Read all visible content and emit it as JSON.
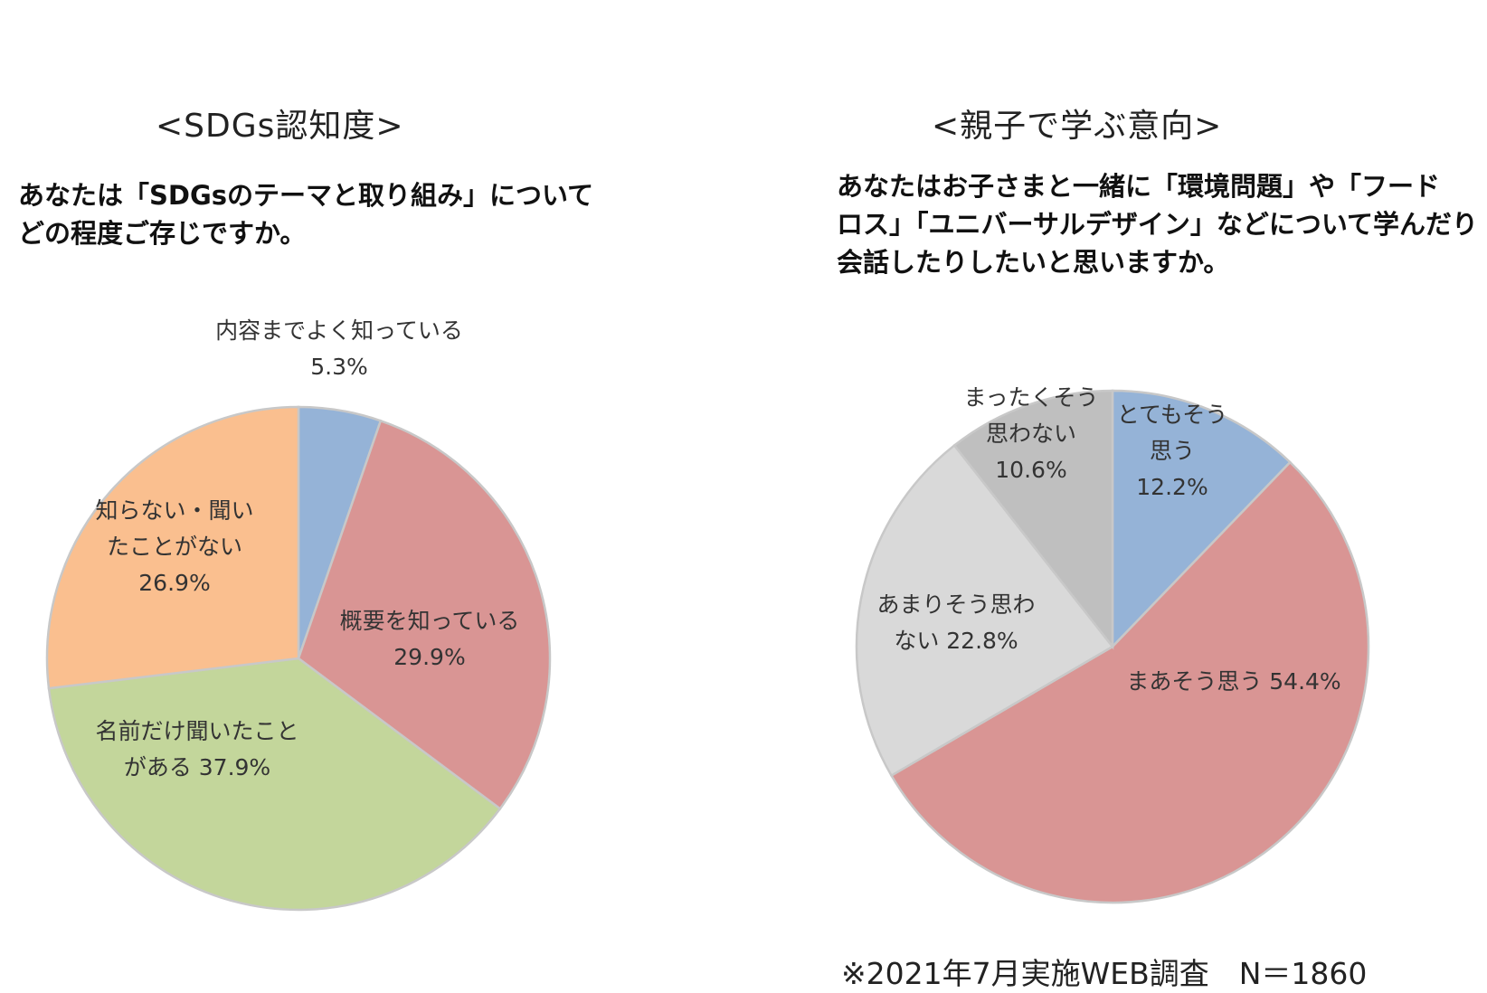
{
  "chart_data": [
    {
      "type": "pie",
      "title": "<SDGs認知度>",
      "subtitle_lines": [
        "あなたは「SDGsのテーマと取り組み」について",
        "どの程度ご存じですか。"
      ],
      "slices": [
        {
          "label_lines": [
            "内容までよく知っている",
            "5.3%"
          ],
          "value": 5.3,
          "color": "#95b3d7"
        },
        {
          "label_lines": [
            "概要を知っている",
            "29.9%"
          ],
          "value": 29.9,
          "color": "#d99594"
        },
        {
          "label_lines": [
            "名前だけ聞いたこと",
            "がある 37.9%"
          ],
          "value": 37.9,
          "color": "#c3d69b"
        },
        {
          "label_lines": [
            "知らない・聞い",
            "たことがない",
            "26.9%"
          ],
          "value": 26.9,
          "color": "#fabf8f"
        }
      ]
    },
    {
      "type": "pie",
      "title": "<親子で学ぶ意向>",
      "subtitle_lines": [
        "あなたはお子さまと一緒に「環境問題」や「フード",
        "ロス」「ユニバーサルデザイン」などについて学んだり",
        "会話したりしたいと思いますか。"
      ],
      "slices": [
        {
          "label_lines": [
            "とてもそう",
            "思う",
            "12.2%"
          ],
          "value": 12.2,
          "color": "#95b3d7"
        },
        {
          "label_lines": [
            "まあそう思う 54.4%"
          ],
          "value": 54.4,
          "color": "#d99594"
        },
        {
          "label_lines": [
            "あまりそう思わ",
            "ない 22.8%"
          ],
          "value": 22.8,
          "color": "#d9d9d9"
        },
        {
          "label_lines": [
            "まったくそう",
            "思わない",
            "10.6%"
          ],
          "value": 10.6,
          "color": "#bfbfbf"
        }
      ]
    }
  ],
  "footnote": "※2021年7月実施WEB調査　N＝1860"
}
